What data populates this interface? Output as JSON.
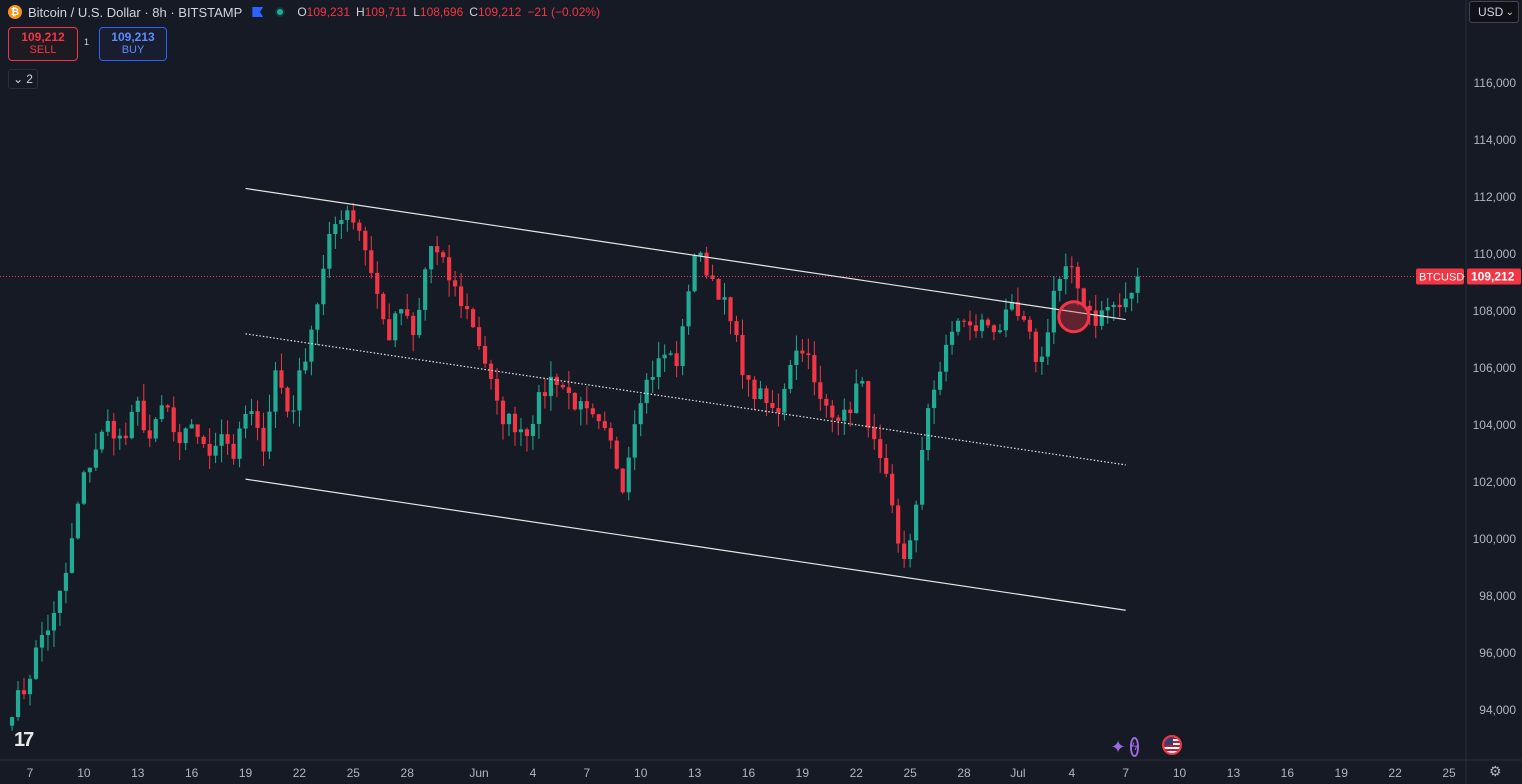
{
  "header": {
    "symbol_title": "Bitcoin / U.S. Dollar · 8h · BITSTAMP",
    "coin_glyph": "₿",
    "ohlc": {
      "open_label": "O",
      "open": "109,231",
      "high_label": "H",
      "high": "109,711",
      "low_label": "L",
      "low": "108,696",
      "close_label": "C",
      "close": "109,212",
      "change": "−21 (−0.02%)"
    }
  },
  "trade": {
    "sell_price": "109,212",
    "sell_label": "SELL",
    "spread": "1",
    "buy_price": "109,213",
    "buy_label": "BUY"
  },
  "indicators_toggle": {
    "icon": "chevron-down-icon",
    "count": "2"
  },
  "currency_select": {
    "value": "USD"
  },
  "logo_text": "17",
  "colors": {
    "up": "#22ab94",
    "down": "#f23645",
    "background": "#161a25",
    "channel_line": "#e6e6e6"
  },
  "chart_data": {
    "type": "candlestick",
    "symbol": "BTCUSD",
    "timeframe": "8h",
    "last_price_label": "BTCUSD",
    "last_price": 109212,
    "last_price_text": "109,212",
    "ylim": [
      92800,
      117800
    ],
    "y_ticks": [
      94000,
      96000,
      98000,
      100000,
      102000,
      104000,
      106000,
      108000,
      110000,
      112000,
      114000,
      116000
    ],
    "y_tick_labels": [
      "94,000",
      "96,000",
      "98,000",
      "100,000",
      "102,000",
      "104,000",
      "106,000",
      "108,000",
      "110,000",
      "112,000",
      "114,000",
      "116,000"
    ],
    "x_ticks": [
      "7",
      "10",
      "13",
      "16",
      "19",
      "22",
      "25",
      "28",
      "Jun",
      "4",
      "7",
      "10",
      "13",
      "16",
      "19",
      "22",
      "25",
      "28",
      "Jul",
      "4",
      "7",
      "10",
      "13",
      "16",
      "19",
      "22",
      "25"
    ],
    "x_range": [
      "2025-05-07",
      "2025-07-25"
    ],
    "x_tick_dates": [
      "2025-05-07",
      "2025-05-10",
      "2025-05-13",
      "2025-05-16",
      "2025-05-19",
      "2025-05-22",
      "2025-05-25",
      "2025-05-28",
      "2025-06-01",
      "2025-06-04",
      "2025-06-07",
      "2025-06-10",
      "2025-06-13",
      "2025-06-16",
      "2025-06-19",
      "2025-06-22",
      "2025-06-25",
      "2025-06-28",
      "2025-07-01",
      "2025-07-04",
      "2025-07-07",
      "2025-07-10",
      "2025-07-13",
      "2025-07-16",
      "2025-07-19",
      "2025-07-22",
      "2025-07-25"
    ],
    "candles_date_range": [
      "2025-05-06",
      "2025-07-07"
    ],
    "candle_anchor_closes": [
      94100,
      94800,
      96500,
      97200,
      99000,
      101900,
      103200,
      104100,
      103300,
      104700,
      103400,
      104900,
      103000,
      104200,
      102800,
      103900,
      102900,
      104700,
      103100,
      106000,
      104200,
      106300,
      108400,
      110800,
      111700,
      110900,
      109200,
      107000,
      108100,
      106900,
      110400,
      109600,
      108600,
      107800,
      106300,
      104400,
      104100,
      103800,
      104900,
      105800,
      105100,
      104500,
      104000,
      103400,
      101900,
      104900,
      105800,
      106500,
      106200,
      110100,
      109500,
      108600,
      107100,
      105300,
      104900,
      104300,
      106300,
      106900,
      104800,
      104600,
      104200,
      105700,
      103300,
      101800,
      99000,
      100800,
      105000,
      106200,
      107800,
      107300,
      107600,
      107400,
      108000,
      107300,
      106000,
      108800,
      109500,
      108500,
      107700,
      108200,
      108100,
      109212
    ],
    "channel": {
      "upper": [
        {
          "x": "2025-05-19",
          "y": 112300
        },
        {
          "x": "2025-07-07",
          "y": 107700
        }
      ],
      "middle": [
        {
          "x": "2025-05-19",
          "y": 107200
        },
        {
          "x": "2025-07-07",
          "y": 102600
        }
      ],
      "lower": [
        {
          "x": "2025-05-19",
          "y": 102100
        },
        {
          "x": "2025-07-07",
          "y": 97500
        }
      ]
    },
    "marker": {
      "x": "2025-07-04",
      "y": 107800
    },
    "grid": false
  }
}
